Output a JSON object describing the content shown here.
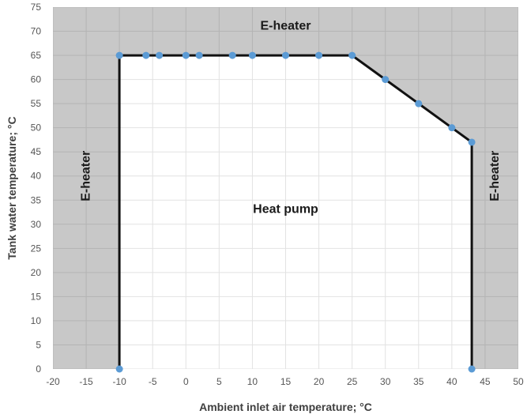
{
  "chart_data": {
    "type": "line",
    "xlabel": "Ambient inlet air temperature; °C",
    "ylabel": "Tank water temperature; °C",
    "xlim": [
      -20,
      50
    ],
    "ylim": [
      0,
      75
    ],
    "xticks": [
      -20,
      -15,
      -10,
      -5,
      0,
      5,
      10,
      15,
      20,
      25,
      30,
      35,
      40,
      45,
      50
    ],
    "yticks": [
      0,
      5,
      10,
      15,
      20,
      25,
      30,
      35,
      40,
      45,
      50,
      55,
      60,
      65,
      70,
      75
    ],
    "grid": true,
    "colors": {
      "outside_region": "#c8c8c8",
      "inside_region": "#ffffff",
      "grid_outside": "#b4b4b4",
      "grid_inside": "#e2e2e2",
      "boundary": "#111111",
      "marker": "#5b9bd5"
    },
    "series": [
      {
        "x": [
          -10,
          -10,
          -6,
          -4,
          0,
          2,
          7,
          10,
          15,
          20,
          25,
          30,
          35,
          40,
          43,
          43
        ],
        "y": [
          0,
          65,
          65,
          65,
          65,
          65,
          65,
          65,
          65,
          65,
          65,
          60,
          55,
          50,
          47,
          0
        ]
      }
    ],
    "annotations": [
      {
        "text": "E-heater",
        "x": 15,
        "y": 71,
        "rotation": 0
      },
      {
        "text": "E-heater",
        "x": -15,
        "y": 40,
        "rotation": -90
      },
      {
        "text": "E-heater",
        "x": 46.5,
        "y": 40,
        "rotation": -90
      },
      {
        "text": "Heat pump",
        "x": 15,
        "y": 33,
        "rotation": 0
      }
    ]
  }
}
